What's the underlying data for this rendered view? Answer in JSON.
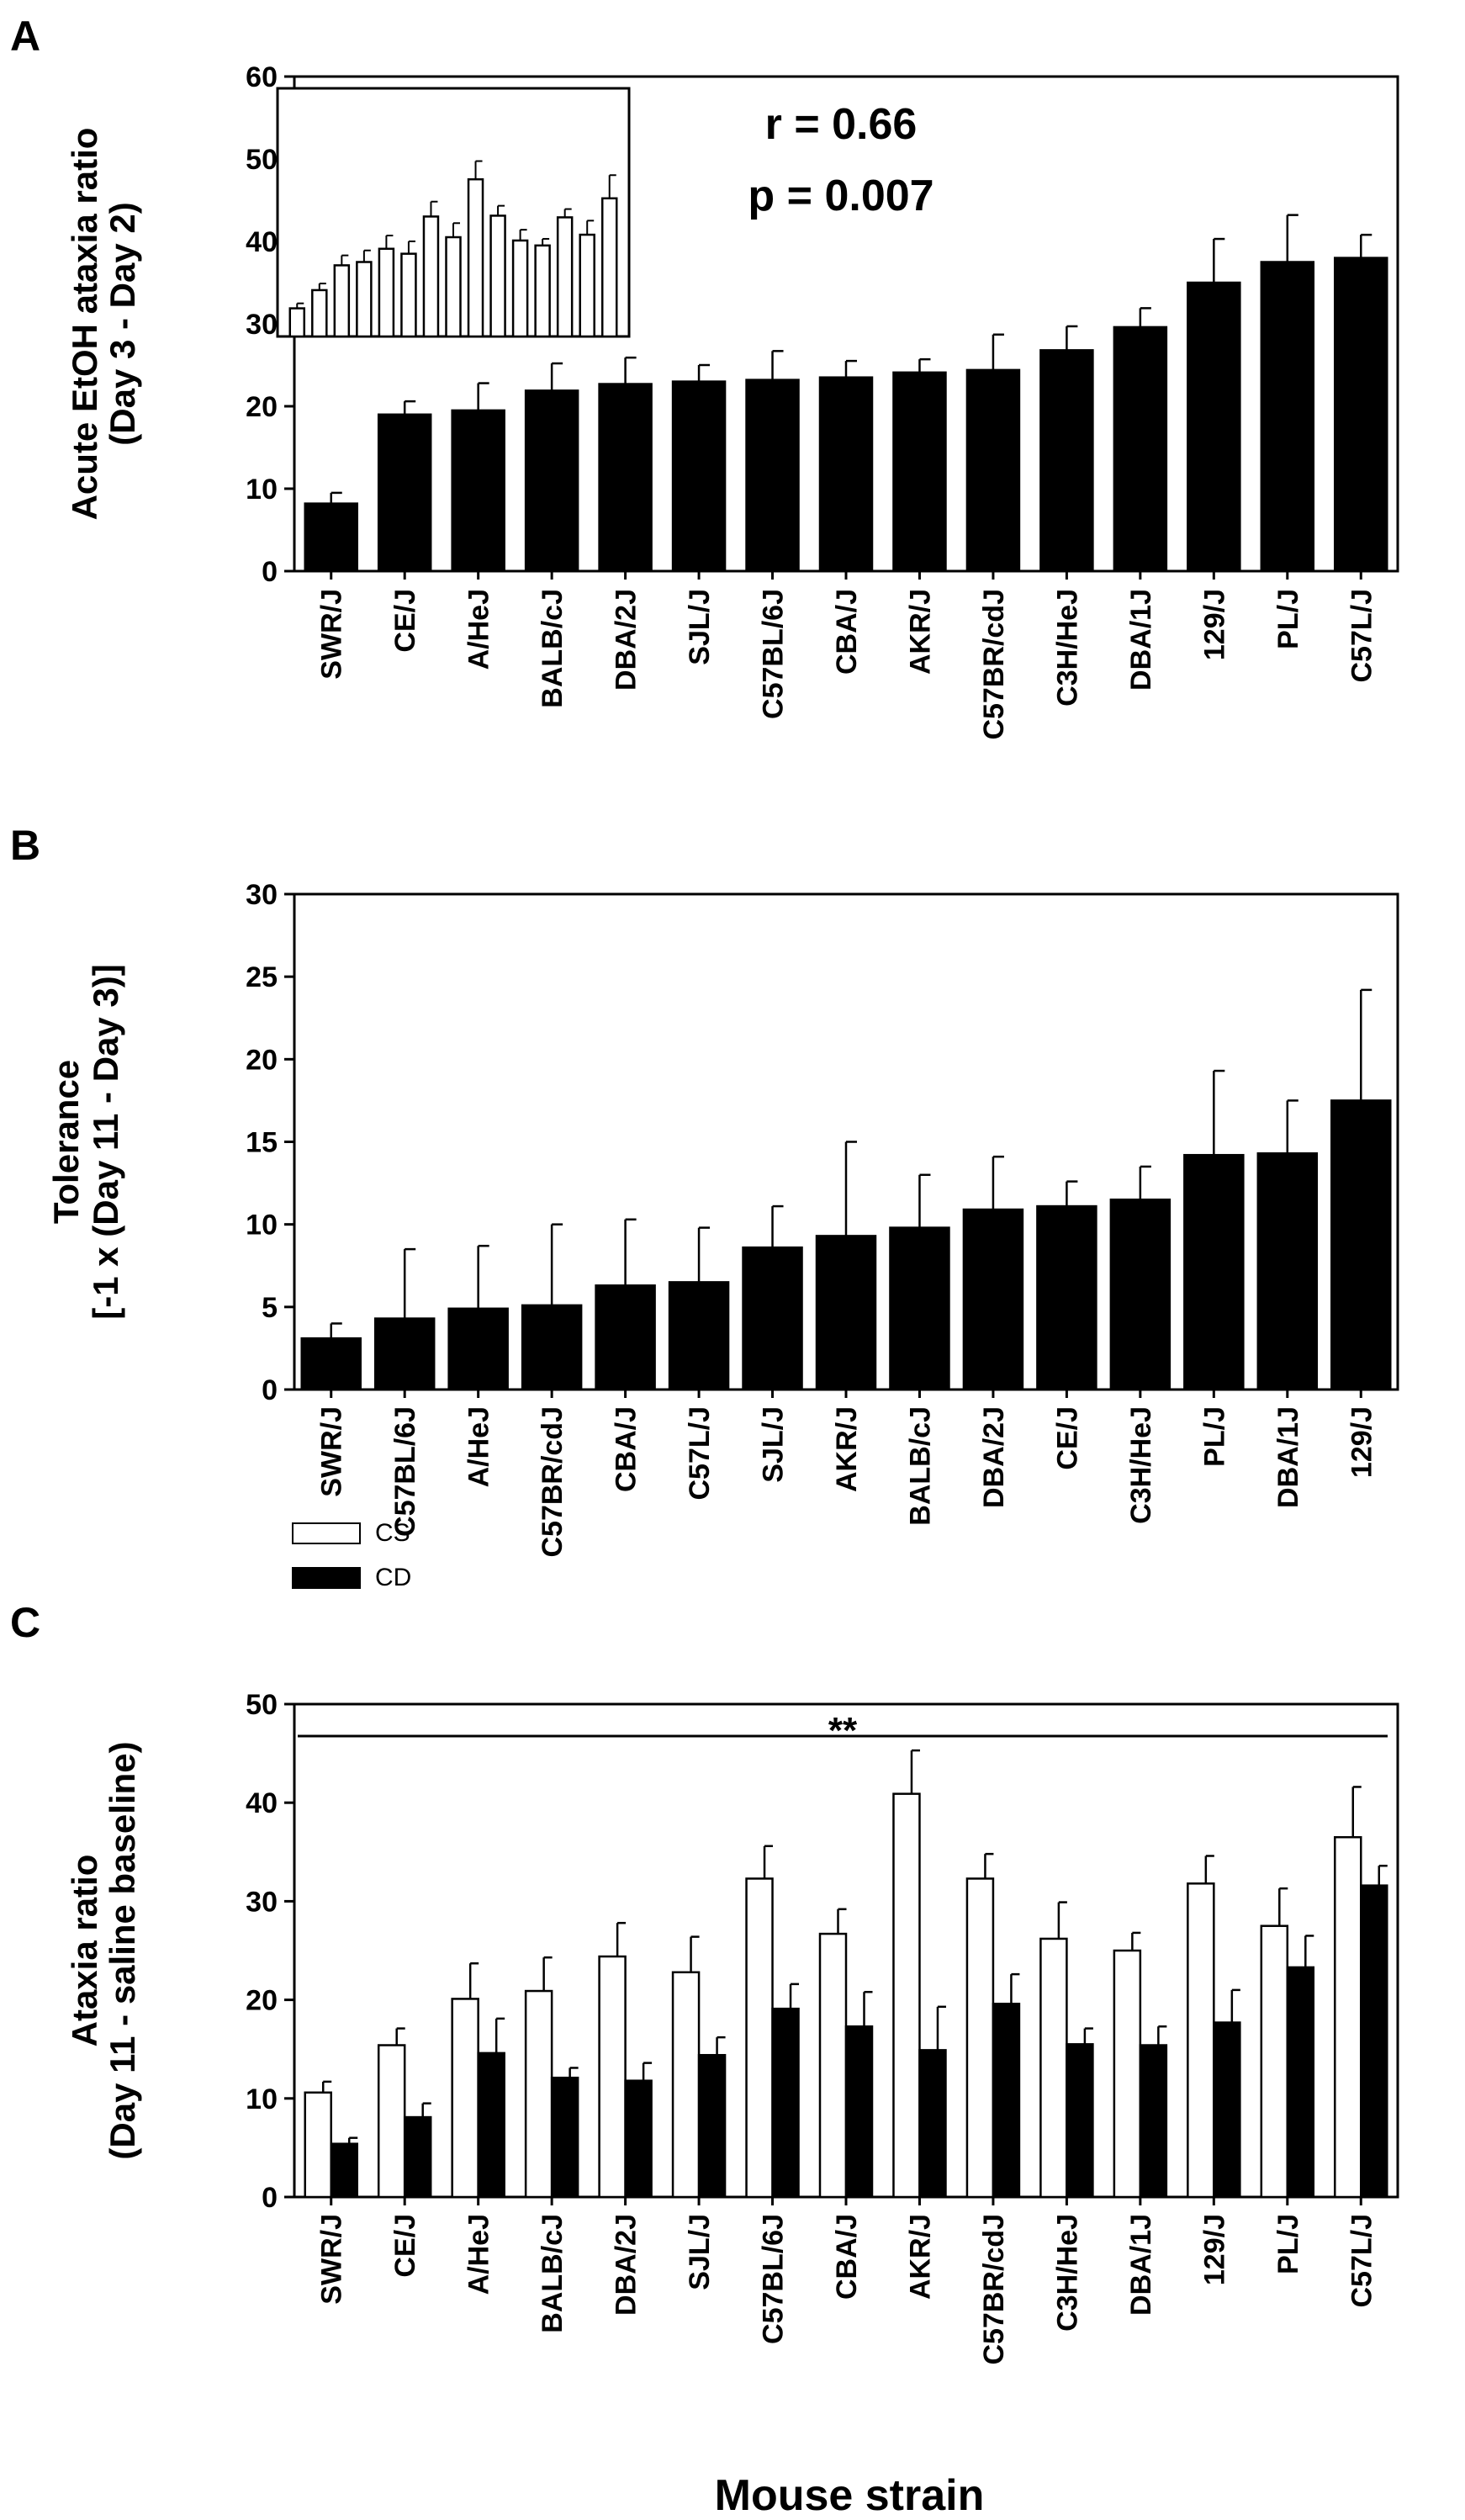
{
  "chart_data": [
    {
      "panel": "A",
      "type": "bar",
      "title": "",
      "ylabel": [
        "Acute EtOH ataxia ratio",
        "(Day 3 - Day 2)"
      ],
      "xlabel": "",
      "ylim": [
        0,
        60
      ],
      "yticks": [
        0,
        10,
        20,
        30,
        40,
        50,
        60
      ],
      "grid": false,
      "categories": [
        "SWR/J",
        "CE/J",
        "A/HeJ",
        "BALB/cJ",
        "DBA/2J",
        "SJL/J",
        "C57BL/6J",
        "CBA/J",
        "AKR/J",
        "C57BR/cdJ",
        "C3H/HeJ",
        "DBA/1J",
        "129/J",
        "PL/J",
        "C57L/J"
      ],
      "series": [
        {
          "name": "Acute EtOH ataxia ratio",
          "color": "#000000",
          "values": [
            8.2,
            19.0,
            19.5,
            21.9,
            22.7,
            23.0,
            23.2,
            23.5,
            24.1,
            24.4,
            26.8,
            29.6,
            35.0,
            37.5,
            38.0
          ],
          "errors": [
            1.3,
            1.6,
            3.3,
            3.3,
            3.2,
            2.0,
            3.5,
            2.0,
            1.6,
            4.3,
            2.9,
            2.3,
            5.3,
            5.7,
            2.8
          ]
        }
      ],
      "annotation": [
        "r = 0.66",
        "p = 0.007"
      ],
      "inset": {
        "values": [
          3.4,
          5.6,
          8.6,
          9.0,
          10.6,
          10.0,
          14.5,
          12.0,
          19.0,
          14.6,
          11.6,
          11.0,
          14.4,
          12.3,
          16.7
        ],
        "errors": [
          0.6,
          0.8,
          1.2,
          1.4,
          1.6,
          1.5,
          1.8,
          1.7,
          2.2,
          1.2,
          1.3,
          0.8,
          1.0,
          1.7,
          2.8
        ],
        "ylim": [
          0,
          30
        ],
        "color": "#ffffff"
      }
    },
    {
      "panel": "B",
      "type": "bar",
      "title": "",
      "ylabel": [
        "Tolerance",
        "[-1 x (Day 11 - Day 3)]"
      ],
      "xlabel": "",
      "ylim": [
        0,
        30
      ],
      "yticks": [
        0,
        5,
        10,
        15,
        20,
        25,
        30
      ],
      "grid": false,
      "categories": [
        "SWR/J",
        "C57BL/6J",
        "A/HeJ",
        "C57BR/cdJ",
        "CBA/J",
        "C57L/J",
        "SJL/J",
        "AKR/J",
        "BALB/cJ",
        "DBA/2J",
        "CE/J",
        "C3H/HeJ",
        "PL/J",
        "DBA/1J",
        "129/J"
      ],
      "series": [
        {
          "name": "Tolerance",
          "color": "#000000",
          "values": [
            3.1,
            4.3,
            4.9,
            5.1,
            6.3,
            6.5,
            8.6,
            9.3,
            9.8,
            10.9,
            11.1,
            11.5,
            14.2,
            14.3,
            17.5
          ],
          "errors": [
            0.9,
            4.2,
            3.8,
            4.9,
            4.0,
            3.3,
            2.5,
            5.7,
            3.2,
            3.2,
            1.5,
            2.0,
            5.1,
            3.2,
            6.7
          ]
        }
      ]
    },
    {
      "panel": "C",
      "type": "bar",
      "title": "",
      "ylabel": [
        "Ataxia ratio",
        "(Day 11 - saline baseline)"
      ],
      "xlabel": "Mouse strain",
      "ylim": [
        0,
        50
      ],
      "yticks": [
        0,
        10,
        20,
        30,
        40,
        50
      ],
      "grid": false,
      "legend_position": "middle-left",
      "significance": "**",
      "categories": [
        "SWR/J",
        "CE/J",
        "A/HeJ",
        "BALB/cJ",
        "DBA/2J",
        "SJL/J",
        "C57BL/6J",
        "CBA/J",
        "AKR/J",
        "C57BR/cdJ",
        "C3H/HeJ",
        "DBA/1J",
        "129/J",
        "PL/J",
        "C57L/J"
      ],
      "series": [
        {
          "name": "CS",
          "color": "#ffffff",
          "values": [
            10.6,
            15.4,
            20.1,
            20.9,
            24.4,
            22.8,
            32.3,
            26.7,
            40.9,
            32.3,
            26.2,
            25.0,
            31.8,
            27.5,
            36.5
          ],
          "errors": [
            1.1,
            1.7,
            3.6,
            3.4,
            3.4,
            3.6,
            3.3,
            2.5,
            4.4,
            2.5,
            3.7,
            1.8,
            2.8,
            3.8,
            5.1
          ]
        },
        {
          "name": "CD",
          "color": "#000000",
          "values": [
            5.4,
            8.1,
            14.6,
            12.1,
            11.8,
            14.4,
            19.1,
            17.3,
            14.9,
            19.6,
            15.5,
            15.4,
            17.7,
            23.3,
            31.6
          ],
          "errors": [
            0.6,
            1.4,
            3.5,
            1.0,
            1.8,
            1.8,
            2.5,
            3.5,
            4.4,
            3.0,
            1.6,
            1.9,
            3.3,
            3.2,
            2.0
          ]
        }
      ]
    }
  ]
}
